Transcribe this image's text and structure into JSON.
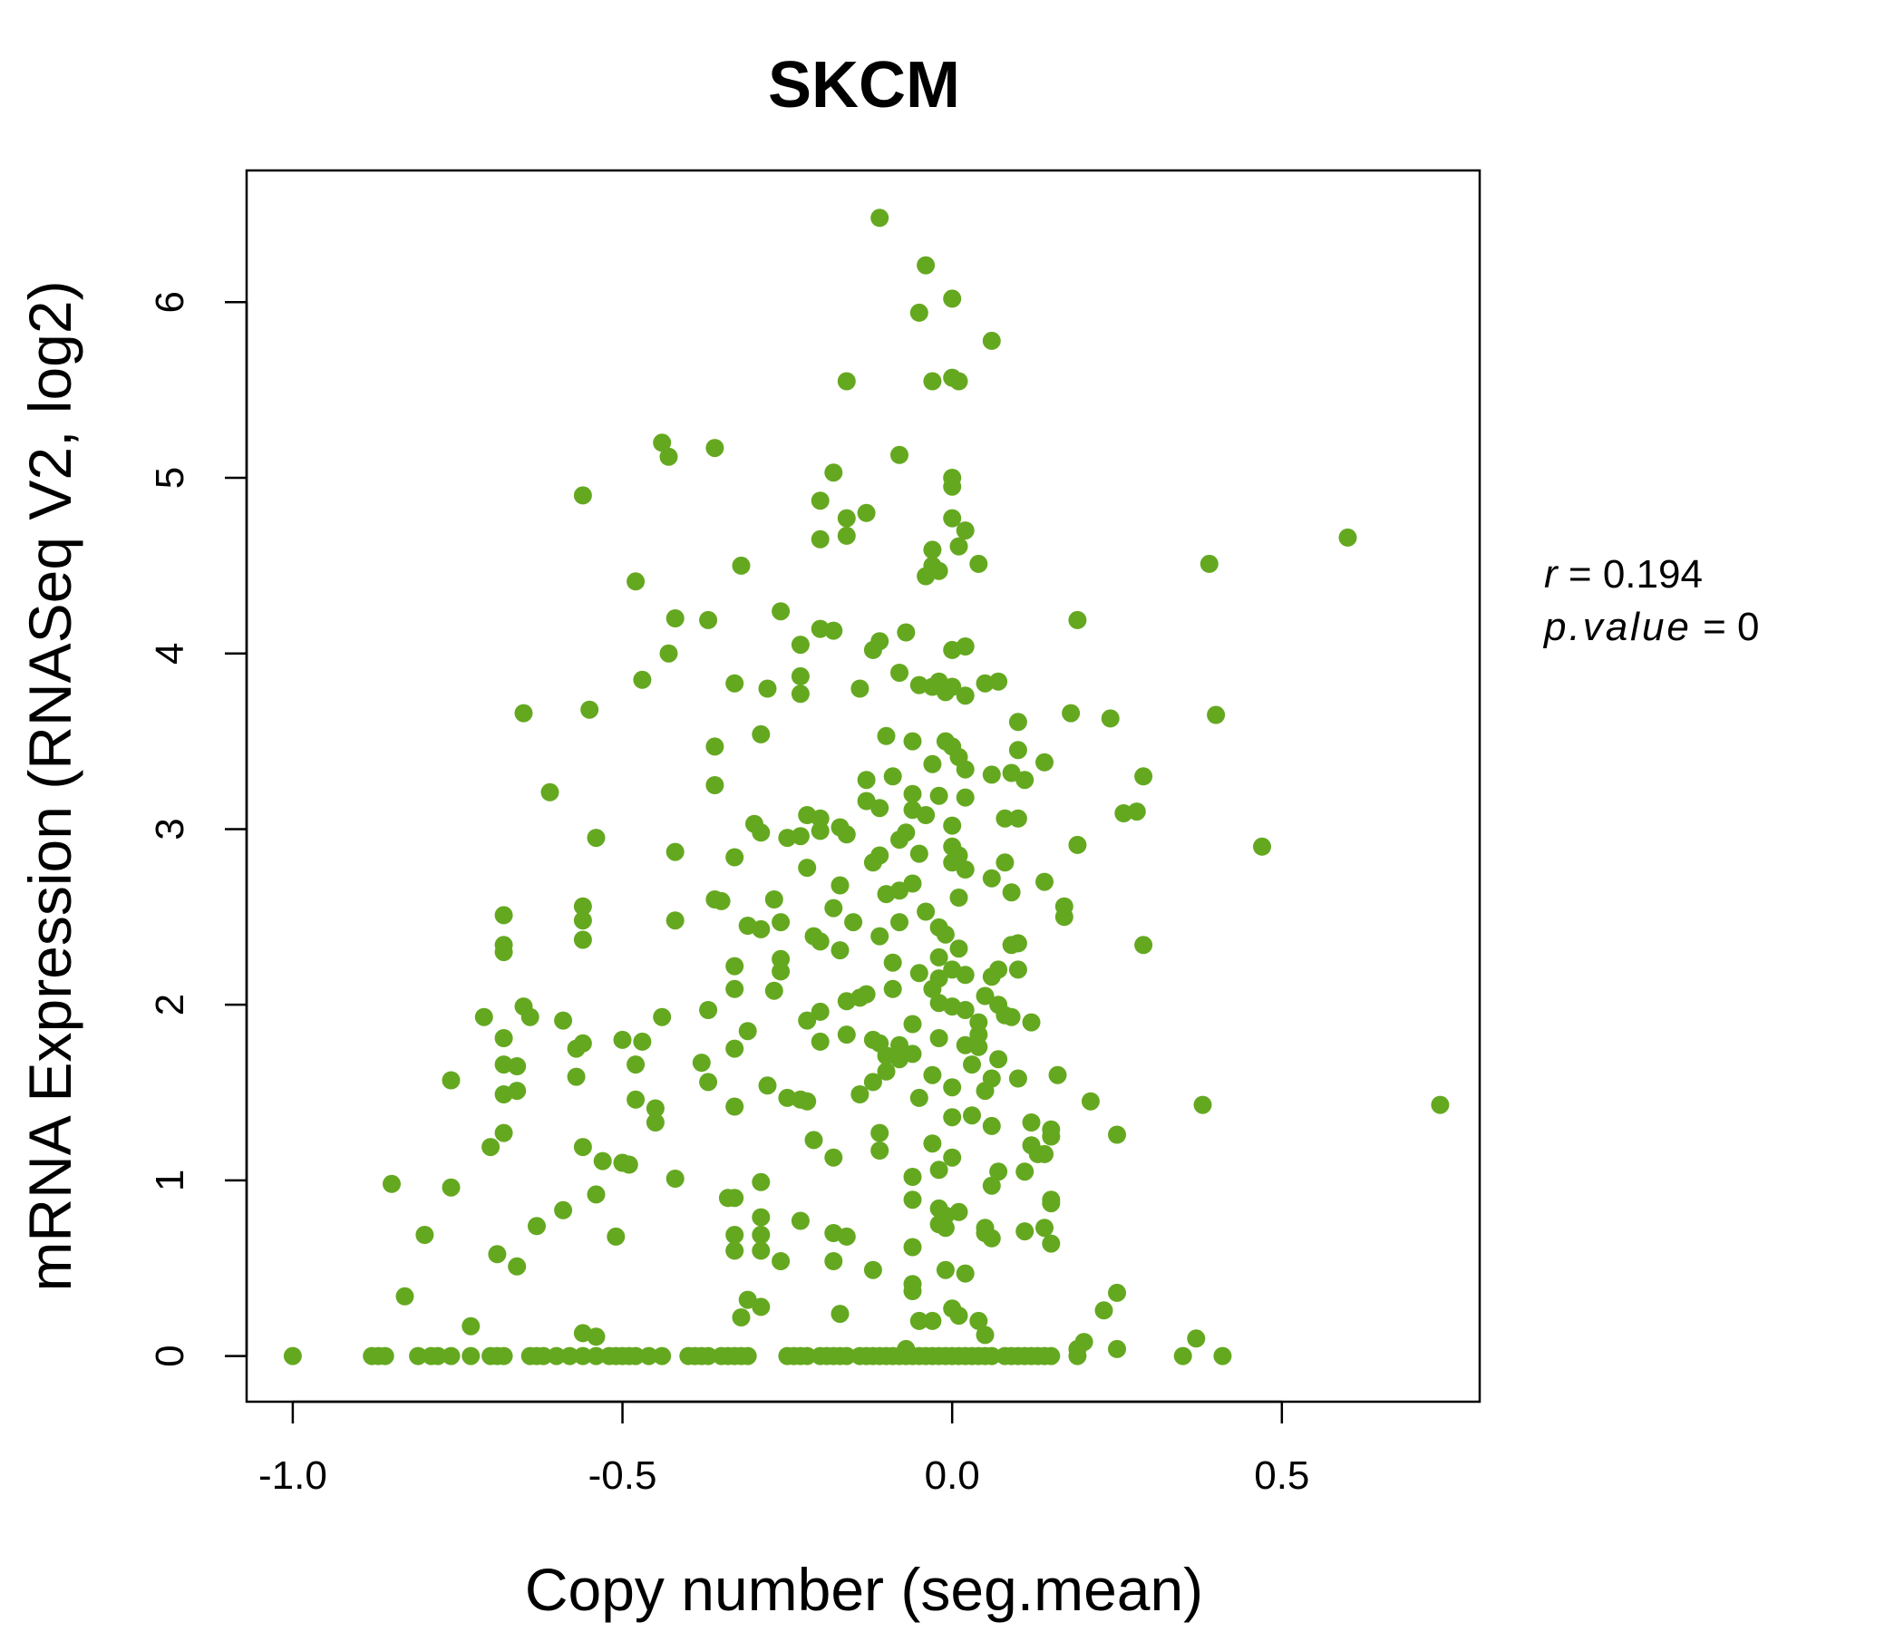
{
  "chart_data": {
    "type": "scatter",
    "title": "SKCM",
    "title_color": "#64a820",
    "point_color": "#64a820",
    "xlabel": "Copy number (seg.mean)",
    "ylabel": "mRNA Expression (RNASeq V2, log2)",
    "xlim": [
      -1.07,
      0.8
    ],
    "ylim": [
      -0.26,
      6.75
    ],
    "x_ticks": [
      -1.0,
      -0.5,
      0.0,
      0.5
    ],
    "x_tick_labels": [
      "-1.0",
      "-0.5",
      "0.0",
      "0.5"
    ],
    "y_ticks": [
      0,
      1,
      2,
      3,
      4,
      5,
      6
    ],
    "y_tick_labels": [
      "0",
      "1",
      "2",
      "3",
      "4",
      "5",
      "6"
    ],
    "grid": false,
    "stats": {
      "r_label": "r",
      "r_value": "0.194",
      "p_label": "p.value",
      "p_value": "0"
    },
    "points": [
      [
        -0.11,
        6.48
      ],
      [
        -0.04,
        6.21
      ],
      [
        0.0,
        6.02
      ],
      [
        -0.05,
        5.94
      ],
      [
        0.06,
        5.78
      ],
      [
        -0.16,
        5.55
      ],
      [
        0.0,
        5.57
      ],
      [
        -0.03,
        5.55
      ],
      [
        0.01,
        5.55
      ],
      [
        -0.44,
        5.2
      ],
      [
        -0.43,
        5.12
      ],
      [
        -0.36,
        5.17
      ],
      [
        -0.08,
        5.13
      ],
      [
        -0.18,
        5.03
      ],
      [
        0.0,
        5.0
      ],
      [
        0.0,
        4.95
      ],
      [
        -0.56,
        4.9
      ],
      [
        -0.2,
        4.87
      ],
      [
        -0.16,
        4.77
      ],
      [
        -0.13,
        4.8
      ],
      [
        0.0,
        4.77
      ],
      [
        -0.16,
        4.67
      ],
      [
        -0.2,
        4.65
      ],
      [
        0.02,
        4.7
      ],
      [
        0.01,
        4.61
      ],
      [
        -0.03,
        4.59
      ],
      [
        -0.32,
        4.5
      ],
      [
        -0.03,
        4.5
      ],
      [
        -0.02,
        4.47
      ],
      [
        -0.04,
        4.44
      ],
      [
        0.04,
        4.51
      ],
      [
        0.39,
        4.51
      ],
      [
        0.6,
        4.66
      ],
      [
        -0.48,
        4.41
      ],
      [
        -0.42,
        4.2
      ],
      [
        -0.37,
        4.19
      ],
      [
        -0.26,
        4.24
      ],
      [
        -0.2,
        4.14
      ],
      [
        -0.18,
        4.13
      ],
      [
        -0.11,
        4.07
      ],
      [
        -0.07,
        4.12
      ],
      [
        0.19,
        4.19
      ],
      [
        -0.23,
        4.05
      ],
      [
        -0.12,
        4.02
      ],
      [
        0.0,
        4.02
      ],
      [
        0.02,
        4.04
      ],
      [
        -0.43,
        4.0
      ],
      [
        -0.47,
        3.85
      ],
      [
        -0.33,
        3.83
      ],
      [
        -0.23,
        3.87
      ],
      [
        -0.08,
        3.89
      ],
      [
        -0.05,
        3.82
      ],
      [
        -0.02,
        3.84
      ],
      [
        -0.03,
        3.81
      ],
      [
        0.0,
        3.81
      ],
      [
        -0.01,
        3.78
      ],
      [
        0.02,
        3.76
      ],
      [
        0.05,
        3.83
      ],
      [
        0.07,
        3.84
      ],
      [
        -0.28,
        3.8
      ],
      [
        -0.23,
        3.77
      ],
      [
        -0.14,
        3.8
      ],
      [
        -0.65,
        3.66
      ],
      [
        -0.55,
        3.68
      ],
      [
        0.18,
        3.66
      ],
      [
        0.24,
        3.63
      ],
      [
        0.4,
        3.65
      ],
      [
        0.1,
        3.61
      ],
      [
        -0.29,
        3.54
      ],
      [
        -0.36,
        3.47
      ],
      [
        -0.1,
        3.53
      ],
      [
        -0.06,
        3.5
      ],
      [
        -0.01,
        3.5
      ],
      [
        0.0,
        3.47
      ],
      [
        0.01,
        3.41
      ],
      [
        0.1,
        3.45
      ],
      [
        0.14,
        3.38
      ],
      [
        -0.03,
        3.37
      ],
      [
        0.02,
        3.34
      ],
      [
        0.06,
        3.31
      ],
      [
        0.09,
        3.32
      ],
      [
        0.11,
        3.28
      ],
      [
        0.29,
        3.3
      ],
      [
        -0.61,
        3.21
      ],
      [
        -0.36,
        3.25
      ],
      [
        -0.13,
        3.28
      ],
      [
        -0.09,
        3.3
      ],
      [
        -0.06,
        3.2
      ],
      [
        -0.02,
        3.19
      ],
      [
        0.02,
        3.18
      ],
      [
        -0.13,
        3.16
      ],
      [
        -0.11,
        3.12
      ],
      [
        -0.06,
        3.11
      ],
      [
        -0.04,
        3.08
      ],
      [
        0.0,
        3.02
      ],
      [
        -0.3,
        3.03
      ],
      [
        -0.22,
        3.08
      ],
      [
        -0.2,
        3.06
      ],
      [
        -0.17,
        3.01
      ],
      [
        0.08,
        3.06
      ],
      [
        0.1,
        3.06
      ],
      [
        0.26,
        3.09
      ],
      [
        0.28,
        3.1
      ],
      [
        -0.54,
        2.95
      ],
      [
        -0.25,
        2.95
      ],
      [
        -0.29,
        2.98
      ],
      [
        -0.23,
        2.96
      ],
      [
        -0.2,
        2.99
      ],
      [
        -0.16,
        2.97
      ],
      [
        -0.07,
        2.98
      ],
      [
        -0.08,
        2.94
      ],
      [
        0.0,
        2.9
      ],
      [
        0.01,
        2.85
      ],
      [
        0.19,
        2.91
      ],
      [
        0.47,
        2.9
      ],
      [
        -0.42,
        2.87
      ],
      [
        -0.33,
        2.84
      ],
      [
        -0.11,
        2.85
      ],
      [
        -0.12,
        2.81
      ],
      [
        -0.05,
        2.86
      ],
      [
        0.0,
        2.81
      ],
      [
        0.02,
        2.77
      ],
      [
        0.08,
        2.81
      ],
      [
        -0.22,
        2.78
      ],
      [
        0.06,
        2.72
      ],
      [
        0.14,
        2.7
      ],
      [
        -0.17,
        2.68
      ],
      [
        -0.06,
        2.69
      ],
      [
        -0.08,
        2.65
      ],
      [
        -0.1,
        2.63
      ],
      [
        0.09,
        2.64
      ],
      [
        0.01,
        2.61
      ],
      [
        -0.35,
        2.59
      ],
      [
        -0.36,
        2.6
      ],
      [
        -0.27,
        2.6
      ],
      [
        -0.18,
        2.55
      ],
      [
        -0.15,
        2.47
      ],
      [
        -0.04,
        2.53
      ],
      [
        0.17,
        2.56
      ],
      [
        0.17,
        2.5
      ],
      [
        -0.56,
        2.56
      ],
      [
        -0.56,
        2.48
      ],
      [
        -0.68,
        2.51
      ],
      [
        -0.42,
        2.48
      ],
      [
        -0.26,
        2.47
      ],
      [
        -0.08,
        2.47
      ],
      [
        -0.31,
        2.45
      ],
      [
        -0.29,
        2.43
      ],
      [
        -0.02,
        2.44
      ],
      [
        -0.56,
        2.37
      ],
      [
        -0.21,
        2.39
      ],
      [
        -0.2,
        2.36
      ],
      [
        -0.11,
        2.39
      ],
      [
        -0.01,
        2.4
      ],
      [
        0.09,
        2.34
      ],
      [
        0.1,
        2.35
      ],
      [
        0.29,
        2.34
      ],
      [
        -0.68,
        2.34
      ],
      [
        -0.68,
        2.3
      ],
      [
        -0.17,
        2.31
      ],
      [
        0.01,
        2.32
      ],
      [
        -0.26,
        2.26
      ],
      [
        -0.09,
        2.24
      ],
      [
        -0.02,
        2.27
      ],
      [
        -0.33,
        2.22
      ],
      [
        -0.26,
        2.19
      ],
      [
        -0.05,
        2.18
      ],
      [
        -0.02,
        2.15
      ],
      [
        0.0,
        2.2
      ],
      [
        0.02,
        2.17
      ],
      [
        0.06,
        2.16
      ],
      [
        0.07,
        2.2
      ],
      [
        0.1,
        2.2
      ],
      [
        -0.03,
        2.09
      ],
      [
        -0.33,
        2.09
      ],
      [
        -0.27,
        2.08
      ],
      [
        -0.16,
        2.02
      ],
      [
        -0.14,
        2.04
      ],
      [
        -0.13,
        2.06
      ],
      [
        -0.09,
        2.09
      ],
      [
        0.05,
        2.05
      ],
      [
        0.07,
        2.0
      ],
      [
        -0.65,
        1.99
      ],
      [
        -0.64,
        1.93
      ],
      [
        -0.71,
        1.93
      ],
      [
        -0.59,
        1.91
      ],
      [
        -0.44,
        1.93
      ],
      [
        -0.37,
        1.97
      ],
      [
        -0.22,
        1.91
      ],
      [
        -0.2,
        1.96
      ],
      [
        -0.02,
        2.01
      ],
      [
        0.0,
        1.99
      ],
      [
        0.02,
        1.97
      ],
      [
        0.08,
        1.94
      ],
      [
        0.09,
        1.93
      ],
      [
        0.12,
        1.9
      ],
      [
        0.04,
        1.9
      ],
      [
        -0.31,
        1.85
      ],
      [
        -0.16,
        1.83
      ],
      [
        -0.12,
        1.8
      ],
      [
        -0.11,
        1.78
      ],
      [
        -0.08,
        1.77
      ],
      [
        -0.06,
        1.89
      ],
      [
        -0.02,
        1.81
      ],
      [
        0.02,
        1.77
      ],
      [
        0.04,
        1.76
      ],
      [
        0.04,
        1.83
      ],
      [
        -0.68,
        1.81
      ],
      [
        -0.56,
        1.78
      ],
      [
        -0.57,
        1.75
      ],
      [
        -0.5,
        1.8
      ],
      [
        -0.47,
        1.79
      ],
      [
        -0.33,
        1.75
      ],
      [
        -0.2,
        1.79
      ],
      [
        -0.1,
        1.71
      ],
      [
        -0.08,
        1.69
      ],
      [
        -0.06,
        1.72
      ],
      [
        -0.68,
        1.66
      ],
      [
        -0.66,
        1.65
      ],
      [
        -0.38,
        1.67
      ],
      [
        -0.48,
        1.66
      ],
      [
        0.03,
        1.66
      ],
      [
        0.07,
        1.69
      ],
      [
        -0.76,
        1.57
      ],
      [
        -0.57,
        1.59
      ],
      [
        -0.37,
        1.56
      ],
      [
        -0.12,
        1.56
      ],
      [
        -0.1,
        1.62
      ],
      [
        -0.03,
        1.6
      ],
      [
        0.0,
        1.53
      ],
      [
        0.05,
        1.51
      ],
      [
        0.06,
        1.58
      ],
      [
        0.1,
        1.58
      ],
      [
        0.16,
        1.6
      ],
      [
        -0.68,
        1.49
      ],
      [
        -0.66,
        1.51
      ],
      [
        -0.48,
        1.46
      ],
      [
        -0.45,
        1.41
      ],
      [
        -0.33,
        1.42
      ],
      [
        -0.28,
        1.54
      ],
      [
        -0.25,
        1.47
      ],
      [
        -0.23,
        1.46
      ],
      [
        -0.22,
        1.45
      ],
      [
        -0.14,
        1.49
      ],
      [
        -0.05,
        1.47
      ],
      [
        0.03,
        1.37
      ],
      [
        0.0,
        1.36
      ],
      [
        0.21,
        1.45
      ],
      [
        0.38,
        1.43
      ],
      [
        0.74,
        1.43
      ],
      [
        -0.45,
        1.33
      ],
      [
        -0.68,
        1.27
      ],
      [
        -0.11,
        1.27
      ],
      [
        0.06,
        1.31
      ],
      [
        0.12,
        1.33
      ],
      [
        0.15,
        1.29
      ],
      [
        0.15,
        1.25
      ],
      [
        0.25,
        1.26
      ],
      [
        -0.7,
        1.19
      ],
      [
        -0.56,
        1.19
      ],
      [
        -0.53,
        1.11
      ],
      [
        -0.5,
        1.1
      ],
      [
        -0.49,
        1.09
      ],
      [
        -0.21,
        1.23
      ],
      [
        -0.18,
        1.13
      ],
      [
        -0.11,
        1.17
      ],
      [
        -0.03,
        1.21
      ],
      [
        0.0,
        1.13
      ],
      [
        0.12,
        1.2
      ],
      [
        0.13,
        1.15
      ],
      [
        0.14,
        1.15
      ],
      [
        -0.85,
        0.98
      ],
      [
        -0.76,
        0.96
      ],
      [
        -0.42,
        1.01
      ],
      [
        -0.34,
        0.9
      ],
      [
        -0.33,
        0.9
      ],
      [
        -0.29,
        0.99
      ],
      [
        -0.06,
        1.02
      ],
      [
        -0.02,
        1.06
      ],
      [
        0.06,
        0.97
      ],
      [
        0.07,
        1.05
      ],
      [
        0.11,
        1.05
      ],
      [
        -0.54,
        0.92
      ],
      [
        -0.06,
        0.89
      ],
      [
        0.15,
        0.87
      ],
      [
        0.15,
        0.89
      ],
      [
        -0.02,
        0.84
      ],
      [
        -0.01,
        0.8
      ],
      [
        0.01,
        0.82
      ],
      [
        -0.59,
        0.83
      ],
      [
        -0.63,
        0.74
      ],
      [
        -0.29,
        0.79
      ],
      [
        -0.23,
        0.77
      ],
      [
        -0.02,
        0.75
      ],
      [
        -0.01,
        0.73
      ],
      [
        0.05,
        0.7
      ],
      [
        0.05,
        0.73
      ],
      [
        0.11,
        0.71
      ],
      [
        0.14,
        0.73
      ],
      [
        -0.8,
        0.69
      ],
      [
        -0.51,
        0.68
      ],
      [
        -0.33,
        0.69
      ],
      [
        -0.29,
        0.69
      ],
      [
        -0.18,
        0.7
      ],
      [
        -0.16,
        0.68
      ],
      [
        0.06,
        0.67
      ],
      [
        0.15,
        0.64
      ],
      [
        -0.69,
        0.58
      ],
      [
        -0.33,
        0.6
      ],
      [
        -0.29,
        0.6
      ],
      [
        -0.26,
        0.54
      ],
      [
        -0.18,
        0.54
      ],
      [
        -0.06,
        0.62
      ],
      [
        -0.66,
        0.51
      ],
      [
        -0.12,
        0.49
      ],
      [
        -0.01,
        0.49
      ],
      [
        0.02,
        0.47
      ],
      [
        -0.06,
        0.41
      ],
      [
        -0.06,
        0.37
      ],
      [
        0.25,
        0.36
      ],
      [
        -0.83,
        0.34
      ],
      [
        -0.31,
        0.32
      ],
      [
        -0.29,
        0.28
      ],
      [
        0.0,
        0.27
      ],
      [
        0.01,
        0.23
      ],
      [
        0.23,
        0.26
      ],
      [
        -0.32,
        0.22
      ],
      [
        -0.17,
        0.24
      ],
      [
        -0.05,
        0.2
      ],
      [
        -0.03,
        0.2
      ],
      [
        0.04,
        0.2
      ],
      [
        -0.73,
        0.17
      ],
      [
        -0.56,
        0.13
      ],
      [
        -0.54,
        0.11
      ],
      [
        0.05,
        0.12
      ],
      [
        0.2,
        0.08
      ],
      [
        0.37,
        0.1
      ],
      [
        0.19,
        0.04
      ],
      [
        0.25,
        0.04
      ],
      [
        -1.0,
        0.0
      ],
      [
        -0.88,
        0.0
      ],
      [
        -0.87,
        0.0
      ],
      [
        -0.86,
        0.0
      ],
      [
        -0.81,
        0.0
      ],
      [
        -0.79,
        0.0
      ],
      [
        -0.78,
        0.0
      ],
      [
        -0.76,
        0.0
      ],
      [
        -0.73,
        0.0
      ],
      [
        -0.7,
        0.0
      ],
      [
        -0.69,
        0.0
      ],
      [
        -0.68,
        0.0
      ],
      [
        -0.64,
        0.0
      ],
      [
        -0.63,
        0.0
      ],
      [
        -0.62,
        0.0
      ],
      [
        -0.6,
        0.0
      ],
      [
        -0.58,
        0.0
      ],
      [
        -0.56,
        0.0
      ],
      [
        -0.54,
        0.0
      ],
      [
        -0.52,
        0.0
      ],
      [
        -0.51,
        0.0
      ],
      [
        -0.5,
        0.0
      ],
      [
        -0.49,
        0.0
      ],
      [
        -0.48,
        0.0
      ],
      [
        -0.46,
        0.0
      ],
      [
        -0.44,
        0.0
      ],
      [
        -0.4,
        0.0
      ],
      [
        -0.39,
        0.0
      ],
      [
        -0.38,
        0.0
      ],
      [
        -0.37,
        0.0
      ],
      [
        -0.35,
        0.0
      ],
      [
        -0.34,
        0.0
      ],
      [
        -0.33,
        0.0
      ],
      [
        -0.32,
        0.0
      ],
      [
        -0.31,
        0.0
      ],
      [
        -0.25,
        0.0
      ],
      [
        -0.24,
        0.0
      ],
      [
        -0.23,
        0.0
      ],
      [
        -0.22,
        0.0
      ],
      [
        -0.2,
        0.0
      ],
      [
        -0.19,
        0.0
      ],
      [
        -0.18,
        0.0
      ],
      [
        -0.17,
        0.0
      ],
      [
        -0.16,
        0.0
      ],
      [
        -0.14,
        0.0
      ],
      [
        -0.13,
        0.0
      ],
      [
        -0.12,
        0.0
      ],
      [
        -0.11,
        0.0
      ],
      [
        -0.1,
        0.0
      ],
      [
        -0.09,
        0.0
      ],
      [
        -0.08,
        0.0
      ],
      [
        -0.07,
        0.0
      ],
      [
        -0.06,
        0.0
      ],
      [
        -0.05,
        0.0
      ],
      [
        -0.04,
        0.0
      ],
      [
        -0.03,
        0.0
      ],
      [
        -0.02,
        0.0
      ],
      [
        -0.01,
        0.0
      ],
      [
        0.0,
        0.0
      ],
      [
        0.01,
        0.0
      ],
      [
        0.02,
        0.0
      ],
      [
        0.03,
        0.0
      ],
      [
        0.04,
        0.0
      ],
      [
        0.05,
        0.0
      ],
      [
        0.06,
        0.0
      ],
      [
        0.08,
        0.0
      ],
      [
        0.09,
        0.0
      ],
      [
        0.1,
        0.0
      ],
      [
        0.11,
        0.0
      ],
      [
        0.12,
        0.0
      ],
      [
        0.13,
        0.0
      ],
      [
        0.14,
        0.0
      ],
      [
        0.15,
        0.0
      ],
      [
        0.19,
        0.0
      ],
      [
        0.35,
        0.0
      ],
      [
        0.41,
        0.0
      ],
      [
        -0.07,
        0.04
      ]
    ]
  }
}
